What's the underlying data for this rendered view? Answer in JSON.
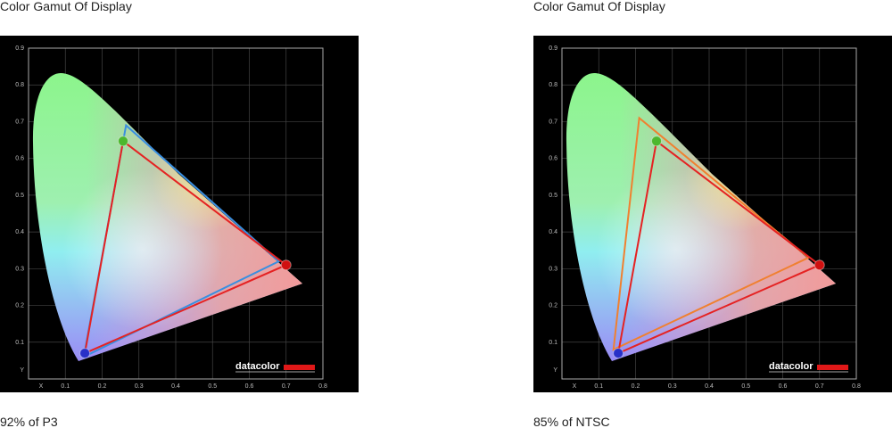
{
  "chart_data": [
    {
      "type": "gamut",
      "title": "Color Gamut Of Display",
      "caption": "92% of P3",
      "logo": "datacolor",
      "x_label": "X",
      "y_label": "Y",
      "xlim": [
        0,
        0.8
      ],
      "ylim": [
        0,
        0.9
      ],
      "xticks": [
        0.1,
        0.2,
        0.3,
        0.4,
        0.5,
        0.6,
        0.7,
        0.8
      ],
      "yticks": [
        0.1,
        0.2,
        0.3,
        0.4,
        0.5,
        0.6,
        0.7,
        0.8,
        0.9
      ],
      "series": [
        {
          "color": "#3a8fe0",
          "x": [
            0.68,
            0.265,
            0.15
          ],
          "y": [
            0.32,
            0.69,
            0.06
          ]
        },
        {
          "color": "#e52222",
          "x": [
            0.7,
            0.257,
            0.153
          ],
          "y": [
            0.31,
            0.647,
            0.07
          ],
          "marker_colors": [
            "#d01010",
            "#4cb82e",
            "#2830c8"
          ]
        }
      ]
    },
    {
      "type": "gamut",
      "title": "Color Gamut Of Display",
      "caption": "85% of NTSC",
      "logo": "datacolor",
      "x_label": "X",
      "y_label": "Y",
      "xlim": [
        0,
        0.8
      ],
      "ylim": [
        0,
        0.9
      ],
      "xticks": [
        0.1,
        0.2,
        0.3,
        0.4,
        0.5,
        0.6,
        0.7,
        0.8
      ],
      "yticks": [
        0.1,
        0.2,
        0.3,
        0.4,
        0.5,
        0.6,
        0.7,
        0.8,
        0.9
      ],
      "series": [
        {
          "color": "#f08030",
          "x": [
            0.67,
            0.21,
            0.14
          ],
          "y": [
            0.33,
            0.71,
            0.08
          ]
        },
        {
          "color": "#e52222",
          "x": [
            0.7,
            0.257,
            0.153
          ],
          "y": [
            0.31,
            0.647,
            0.07
          ],
          "marker_colors": [
            "#d01010",
            "#4cb82e",
            "#2830c8"
          ]
        }
      ]
    }
  ]
}
